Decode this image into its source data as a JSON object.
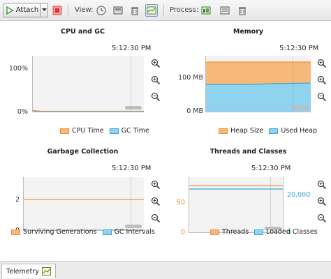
{
  "toolbar": {
    "attach_label": "Attach",
    "view_label": "View:",
    "process_label": "Process:",
    "view_icons": [
      "clock-icon",
      "memory-icon",
      "trash-icon",
      "telemetry-icon"
    ],
    "process_icons": [
      "heap-dump-icon",
      "thread-dump-icon",
      "gc-icon"
    ]
  },
  "panels": {
    "cpu": {
      "title": "CPU and GC",
      "time": "5:12:30 PM",
      "yticks": [
        "100%",
        "0%"
      ],
      "legend": [
        "CPU Time",
        "GC Time"
      ]
    },
    "memory": {
      "title": "Memory",
      "time": "5:12:30 PM",
      "yticks": [
        "100 MB",
        "0 MB"
      ],
      "legend": [
        "Heap Size",
        "Used Heap"
      ]
    },
    "gc": {
      "title": "Garbage Collection",
      "time": "5:12:30 PM",
      "yticks": [
        "2",
        "0"
      ],
      "legend": [
        "Surviving Generations",
        "GC Intervals"
      ]
    },
    "threads": {
      "title": "Threads and Classes",
      "time": "5:12:30 PM",
      "yticks_left": [
        "50",
        "0"
      ],
      "yticks_right": [
        "20,000",
        "0"
      ],
      "legend": [
        "Threads",
        "Loaded Classes"
      ]
    }
  },
  "colors": {
    "orange": "#e8923a",
    "blue": "#3aa6d6",
    "heap_fill": "#f7b97a",
    "used_fill": "#8fd3ef"
  },
  "bottom": {
    "tab_label": "Telemetry"
  },
  "chart_data": [
    {
      "type": "line",
      "title": "CPU and GC",
      "ylim": [
        0,
        100
      ],
      "series": [
        {
          "name": "CPU Time",
          "values": [
            1,
            0,
            0,
            0,
            0
          ]
        },
        {
          "name": "GC Time",
          "values": [
            0,
            0,
            0,
            0,
            0
          ]
        }
      ]
    },
    {
      "type": "area",
      "title": "Memory",
      "ylabel": "MB",
      "series": [
        {
          "name": "Heap Size",
          "values": [
            140,
            140,
            140,
            140,
            140
          ]
        },
        {
          "name": "Used Heap",
          "values": [
            78,
            78,
            80,
            81,
            83
          ]
        }
      ]
    },
    {
      "type": "line",
      "title": "Garbage Collection",
      "series": [
        {
          "name": "Surviving Generations",
          "values": [
            2,
            2,
            2,
            2,
            2
          ]
        },
        {
          "name": "GC Intervals",
          "values": [
            0,
            0,
            0,
            0,
            0
          ]
        }
      ]
    },
    {
      "type": "line",
      "title": "Threads and Classes",
      "series": [
        {
          "name": "Threads",
          "values": [
            76,
            76,
            76,
            76,
            76
          ]
        },
        {
          "name": "Loaded Classes",
          "values": [
            24000,
            24000,
            24000,
            24000,
            24000
          ]
        }
      ]
    }
  ]
}
